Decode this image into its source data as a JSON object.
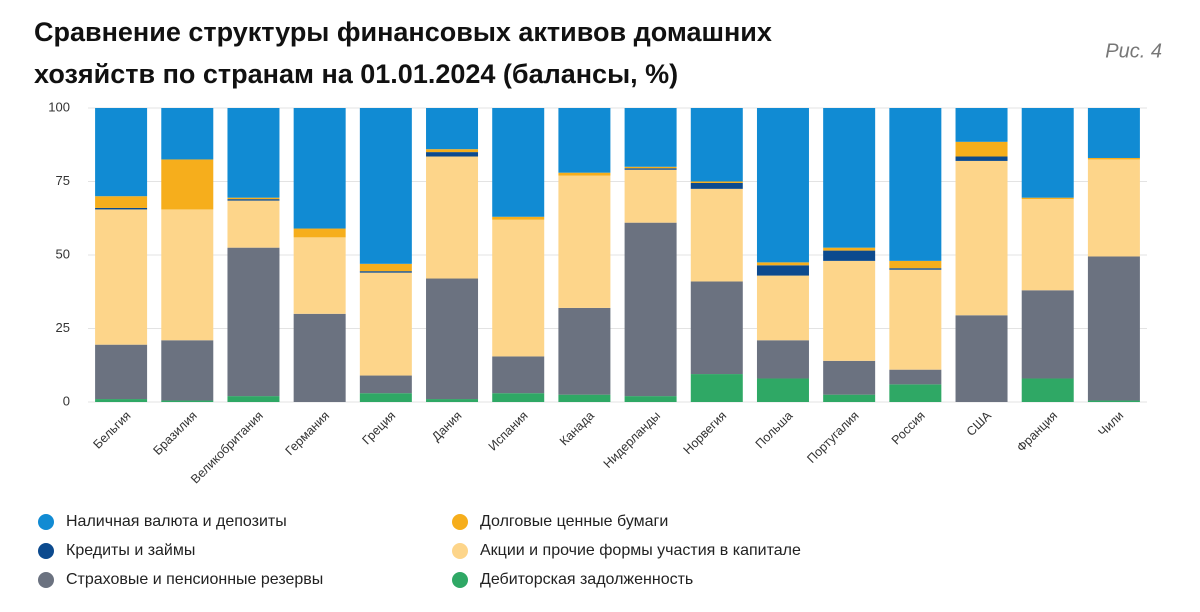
{
  "figure_label": "Рис. 4",
  "chart_data": {
    "type": "stacked-bar",
    "title": [
      "Сравнение структуры финансовых активов домашних",
      "хозяйств по странам на 01.01.2024 (балансы, %)"
    ],
    "categories": [
      "Бельгия",
      "Бразилия",
      "Великобритания",
      "Германия",
      "Греция",
      "Дания",
      "Испания",
      "Канада",
      "Нидерланды",
      "Норвегия",
      "Польша",
      "Португалия",
      "Россия",
      "США",
      "Франция",
      "Чили"
    ],
    "series": [
      {
        "name": "Дебиторская задолженность",
        "color": "#2fa865",
        "values": [
          1,
          0.5,
          2,
          0,
          3,
          1,
          3,
          2.5,
          2,
          9.5,
          8,
          2.5,
          6,
          0,
          8,
          0.5
        ]
      },
      {
        "name": "Страховые и пенсионные резервы",
        "color": "#6b7280",
        "values": [
          18.5,
          20.5,
          50.5,
          30,
          6,
          41,
          12.5,
          29.5,
          59,
          31.5,
          13,
          11.5,
          5,
          29.5,
          30,
          49
        ]
      },
      {
        "name": "Акции и прочие формы участия в капитале",
        "color": "#fdd58a",
        "values": [
          46,
          44.5,
          16,
          26,
          35,
          41.5,
          46.5,
          45,
          18,
          31.5,
          22,
          34,
          34,
          52.5,
          31,
          33
        ]
      },
      {
        "name": "Кредиты и займы",
        "color": "#0c4a8e",
        "values": [
          0.5,
          0,
          0.5,
          0,
          0.5,
          1.5,
          0,
          0,
          0.5,
          2,
          3.5,
          3.5,
          0.5,
          1.5,
          0,
          0
        ]
      },
      {
        "name": "Долговые ценные бумаги",
        "color": "#f6ae1c",
        "values": [
          4,
          17,
          0.5,
          3,
          2.5,
          1,
          1,
          1,
          0.5,
          0.5,
          1,
          1,
          2.5,
          5,
          0.5,
          0.5
        ]
      },
      {
        "name": "Наличная валюта и депозиты",
        "color": "#118bd3",
        "values": [
          30,
          17.5,
          30.5,
          41,
          53,
          14,
          37,
          22,
          20,
          25,
          52.5,
          47.5,
          52,
          11.5,
          30.5,
          17
        ]
      }
    ],
    "ylim": [
      0,
      100
    ],
    "yticks": [
      0,
      25,
      50,
      75,
      100
    ],
    "grid": true
  }
}
